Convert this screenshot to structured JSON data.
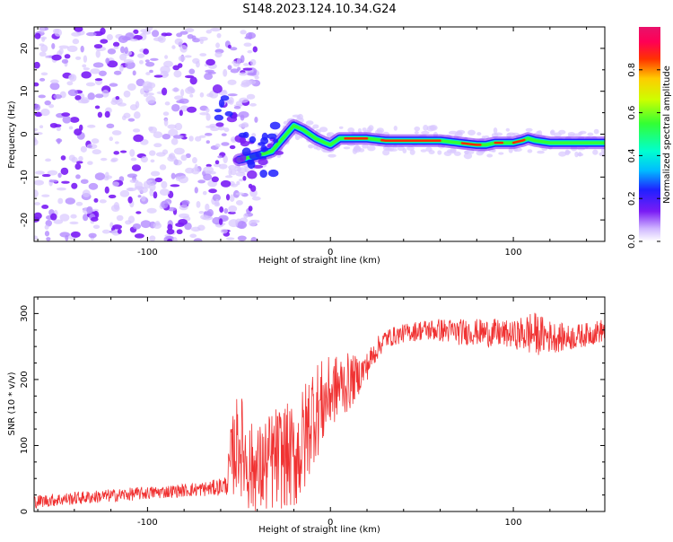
{
  "title": "S148.2023.124.10.34.G24",
  "colors": {
    "snr_line": "#f03232",
    "frame": "#000000",
    "colorbar": [
      "#ffffff",
      "#cfb6ff",
      "#7a1cf5",
      "#2020ff",
      "#00bcff",
      "#00ffd0",
      "#33ff33",
      "#ccff00",
      "#ffcc00",
      "#ff3300",
      "#ff0055",
      "#e8126b"
    ]
  },
  "chart_data": [
    {
      "type": "heatmap",
      "title": "",
      "xlabel": "Height of straight line (km)",
      "ylabel": "Frequency (Hz)",
      "xlim": [
        -162,
        150
      ],
      "ylim": [
        -25,
        25
      ],
      "xticks": [
        -100,
        0,
        100
      ],
      "xtick_labels": [
        "-100",
        "0",
        "100"
      ],
      "yticks": [
        -20,
        -10,
        0,
        10,
        20
      ],
      "ytick_labels": [
        "-20",
        "-10",
        "0",
        "10",
        "20"
      ],
      "colorbar": {
        "label": "Normalized spectral amplitude",
        "range": [
          0,
          1
        ],
        "ticks": [
          0,
          0.2,
          0.4,
          0.6,
          0.8
        ],
        "tick_labels": [
          "0.0",
          "0.2",
          "0.4",
          "0.6",
          "0.8"
        ]
      },
      "ridge": {
        "x": [
          -50,
          -40,
          -32,
          -26,
          -20,
          -15,
          -8,
          -3,
          0,
          5,
          10,
          20,
          30,
          40,
          50,
          60,
          70,
          80,
          85,
          90,
          95,
          100,
          105,
          108,
          112,
          120,
          130,
          140,
          150
        ],
        "y": [
          -6,
          -5,
          -4,
          -1,
          2,
          1,
          -1,
          -2,
          -2.5,
          -1,
          -1,
          -1,
          -1.5,
          -1.5,
          -1.5,
          -1.5,
          -2,
          -2.5,
          -2.5,
          -2,
          -2,
          -2,
          -1.5,
          -1,
          -1.5,
          -2,
          -2,
          -2,
          -2
        ]
      },
      "noise_region": {
        "x_range": [
          -162,
          -48
        ],
        "y_range": [
          -25,
          25
        ]
      }
    },
    {
      "type": "line",
      "title": "",
      "xlabel": "Height of straight line (km)",
      "ylabel": "SNR (10 * v/v)",
      "xlim": [
        -162,
        150
      ],
      "ylim": [
        0,
        325
      ],
      "xticks": [
        -100,
        0,
        100
      ],
      "xtick_labels": [
        "-100",
        "0",
        "100"
      ],
      "yticks": [
        0,
        100,
        200,
        300
      ],
      "ytick_labels": [
        "0",
        "100",
        "200",
        "300"
      ],
      "envelope": {
        "x": [
          -162,
          -140,
          -120,
          -100,
          -80,
          -65,
          -57,
          -54,
          -50,
          -45,
          -40,
          -35,
          -30,
          -25,
          -20,
          -15,
          -10,
          -5,
          0,
          5,
          10,
          15,
          20,
          25,
          30,
          40,
          50,
          60,
          70,
          80,
          90,
          100,
          110,
          120,
          130,
          140,
          150
        ],
        "mean": [
          15,
          20,
          24,
          28,
          32,
          35,
          40,
          80,
          110,
          70,
          60,
          70,
          80,
          85,
          80,
          100,
          150,
          160,
          180,
          190,
          195,
          205,
          220,
          245,
          262,
          270,
          275,
          275,
          272,
          272,
          270,
          268,
          270,
          265,
          263,
          268,
          275
        ],
        "spread": [
          10,
          10,
          10,
          10,
          10,
          12,
          15,
          60,
          80,
          70,
          70,
          75,
          80,
          80,
          80,
          90,
          80,
          70,
          55,
          50,
          45,
          30,
          22,
          18,
          15,
          14,
          16,
          18,
          20,
          20,
          22,
          20,
          35,
          25,
          20,
          18,
          18
        ]
      }
    }
  ]
}
